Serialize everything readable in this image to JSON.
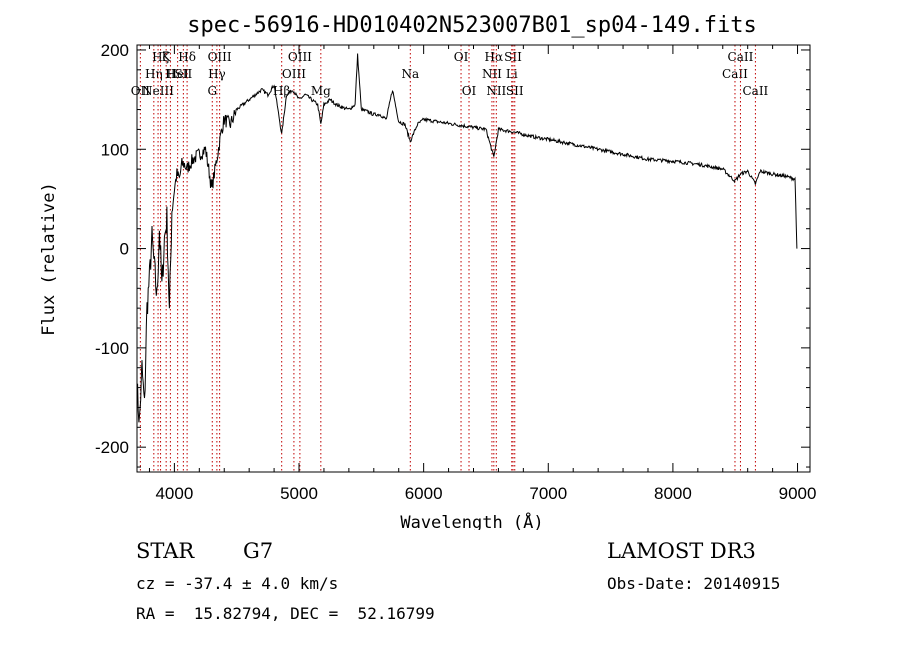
{
  "chart_data": {
    "type": "line",
    "title": "spec-56916-HD010402N523007B01_sp04-149.fits",
    "xlabel": "Wavelength (Å)",
    "ylabel": "Flux (relative)",
    "xlim": [
      3700,
      9100
    ],
    "ylim": [
      -225,
      205
    ],
    "xticks": [
      4000,
      5000,
      6000,
      7000,
      8000,
      9000
    ],
    "yticks": [
      -200,
      -100,
      0,
      100,
      200
    ],
    "grid": false,
    "series": [
      {
        "name": "spectrum",
        "x": [
          3700,
          3720,
          3740,
          3760,
          3780,
          3800,
          3820,
          3840,
          3860,
          3880,
          3900,
          3920,
          3940,
          3960,
          3980,
          4000,
          4020,
          4040,
          4060,
          4080,
          4100,
          4150,
          4200,
          4250,
          4300,
          4340,
          4380,
          4400,
          4450,
          4500,
          4550,
          4600,
          4650,
          4700,
          4750,
          4800,
          4861,
          4900,
          4950,
          5000,
          5050,
          5100,
          5150,
          5175,
          5200,
          5250,
          5300,
          5350,
          5400,
          5450,
          5470,
          5500,
          5550,
          5600,
          5650,
          5700,
          5750,
          5800,
          5850,
          5893,
          5950,
          6000,
          6100,
          6200,
          6300,
          6400,
          6500,
          6563,
          6600,
          6700,
          6800,
          6900,
          7000,
          7200,
          7400,
          7600,
          7800,
          8000,
          8200,
          8400,
          8498,
          8542,
          8600,
          8662,
          8700,
          8800,
          8900,
          8980,
          8995
        ],
        "values": [
          -140,
          -175,
          -120,
          -160,
          -60,
          -30,
          10,
          -20,
          -50,
          20,
          -40,
          10,
          30,
          -65,
          40,
          60,
          75,
          70,
          85,
          85,
          80,
          90,
          95,
          100,
          60,
          90,
          120,
          130,
          125,
          140,
          145,
          150,
          155,
          160,
          155,
          165,
          115,
          155,
          160,
          150,
          155,
          150,
          145,
          125,
          145,
          150,
          145,
          142,
          140,
          145,
          195,
          140,
          138,
          135,
          135,
          130,
          160,
          128,
          125,
          108,
          125,
          130,
          128,
          126,
          124,
          122,
          120,
          92,
          120,
          118,
          115,
          112,
          110,
          105,
          100,
          95,
          90,
          88,
          85,
          80,
          68,
          75,
          78,
          65,
          78,
          75,
          73,
          70,
          0
        ]
      }
    ],
    "lines": [
      {
        "wave": 3727,
        "row": 2,
        "label": "OII"
      },
      {
        "wave": 3835,
        "row": 1,
        "label": "Hη"
      },
      {
        "wave": 3869,
        "row": 2,
        "label": "NeIII"
      },
      {
        "wave": 3889,
        "row": 0,
        "label": "Hζ"
      },
      {
        "wave": 3934,
        "row": 0,
        "label": "K"
      },
      {
        "wave": 3968,
        "row": 1,
        "label": "H"
      },
      {
        "wave": 4026,
        "row": 1,
        "label": "HeI"
      },
      {
        "wave": 4072,
        "row": 1,
        "label": "SII"
      },
      {
        "wave": 4102,
        "row": 0,
        "label": "Hδ"
      },
      {
        "wave": 4304,
        "row": 2,
        "label": "G"
      },
      {
        "wave": 4341,
        "row": 1,
        "label": "Hγ"
      },
      {
        "wave": 4363,
        "row": 0,
        "label": "OIII"
      },
      {
        "wave": 4861,
        "row": 2,
        "label": "Hβ"
      },
      {
        "wave": 4959,
        "row": 1,
        "label": "OIII"
      },
      {
        "wave": 5007,
        "row": 0,
        "label": "OIII"
      },
      {
        "wave": 5175,
        "row": 2,
        "label": "Mg"
      },
      {
        "wave": 5893,
        "row": 1,
        "label": "Na"
      },
      {
        "wave": 6300,
        "row": 0,
        "label": "OI"
      },
      {
        "wave": 6364,
        "row": 2,
        "label": "OI"
      },
      {
        "wave": 6548,
        "row": 1,
        "label": "NII"
      },
      {
        "wave": 6563,
        "row": 0,
        "label": "Hα"
      },
      {
        "wave": 6583,
        "row": 2,
        "label": "NII"
      },
      {
        "wave": 6707,
        "row": 1,
        "label": "Li"
      },
      {
        "wave": 6717,
        "row": 0,
        "label": "SII"
      },
      {
        "wave": 6731,
        "row": 2,
        "label": "SII"
      },
      {
        "wave": 8498,
        "row": 1,
        "label": "CaII"
      },
      {
        "wave": 8542,
        "row": 0,
        "label": "CaII"
      },
      {
        "wave": 8662,
        "row": 2,
        "label": "CaII"
      }
    ]
  },
  "info": {
    "object_class": "STAR",
    "subclass": "G7",
    "survey": "LAMOST DR3",
    "cz": "cz = -37.4 ± 4.0 km/s",
    "obs_date": "Obs-Date: 20140915",
    "coords": "RA =  15.82794, DEC =  52.16799"
  }
}
